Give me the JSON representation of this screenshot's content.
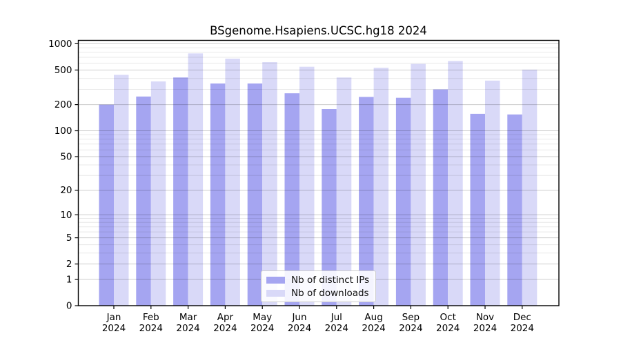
{
  "page": {
    "background": "#ffffff"
  },
  "chart_data": {
    "type": "bar",
    "title": "BSgenome.Hsapiens.UCSC.hg18 2024",
    "categories": [
      "Jan",
      "Feb",
      "Mar",
      "Apr",
      "May",
      "Jun",
      "Jul",
      "Aug",
      "Sep",
      "Oct",
      "Nov",
      "Dec"
    ],
    "category_year": "2024",
    "series": [
      {
        "name": "Nb of distinct IPs",
        "color": "#a5a5f1",
        "values": [
          200,
          248,
          410,
          350,
          350,
          270,
          178,
          245,
          240,
          300,
          157,
          154
        ]
      },
      {
        "name": "Nb of downloads",
        "color": "#d9d9f8",
        "values": [
          440,
          370,
          775,
          675,
          615,
          545,
          410,
          530,
          588,
          635,
          378,
          505
        ]
      }
    ],
    "y_axis": {
      "scale": "log1p",
      "ticks": [
        0,
        1,
        2,
        5,
        10,
        20,
        50,
        100,
        200,
        500,
        1000
      ],
      "range_top": 1100
    },
    "x_axis": {
      "label_lines": 2
    },
    "legend": {
      "position": "inside-bottom-center"
    },
    "grid": {
      "on": true,
      "major_alpha": 0.2,
      "minor_alpha": 0.09
    }
  }
}
